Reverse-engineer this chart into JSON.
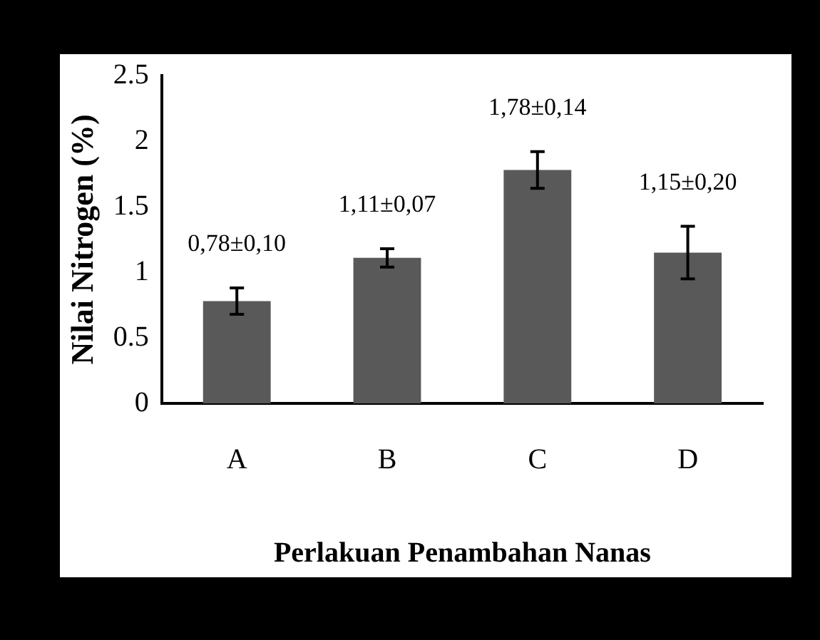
{
  "chart_data": {
    "type": "bar",
    "xlabel": "Perlakuan Penambahan Nanas",
    "ylabel": "Nilai Nitrogen (%)",
    "categories": [
      "A",
      "B",
      "C",
      "D"
    ],
    "values": [
      0.78,
      1.11,
      1.78,
      1.15
    ],
    "errors": [
      0.1,
      0.07,
      0.14,
      0.2
    ],
    "value_labels": [
      "0,78±0,10",
      "1,11±0,07",
      "1,78±0,14",
      "1,15±0,20"
    ],
    "color": "#595959",
    "ylim": [
      0,
      2.5
    ],
    "yticks": [
      0,
      0.5,
      1,
      1.5,
      2,
      2.5
    ],
    "grid": false,
    "legend": false
  }
}
